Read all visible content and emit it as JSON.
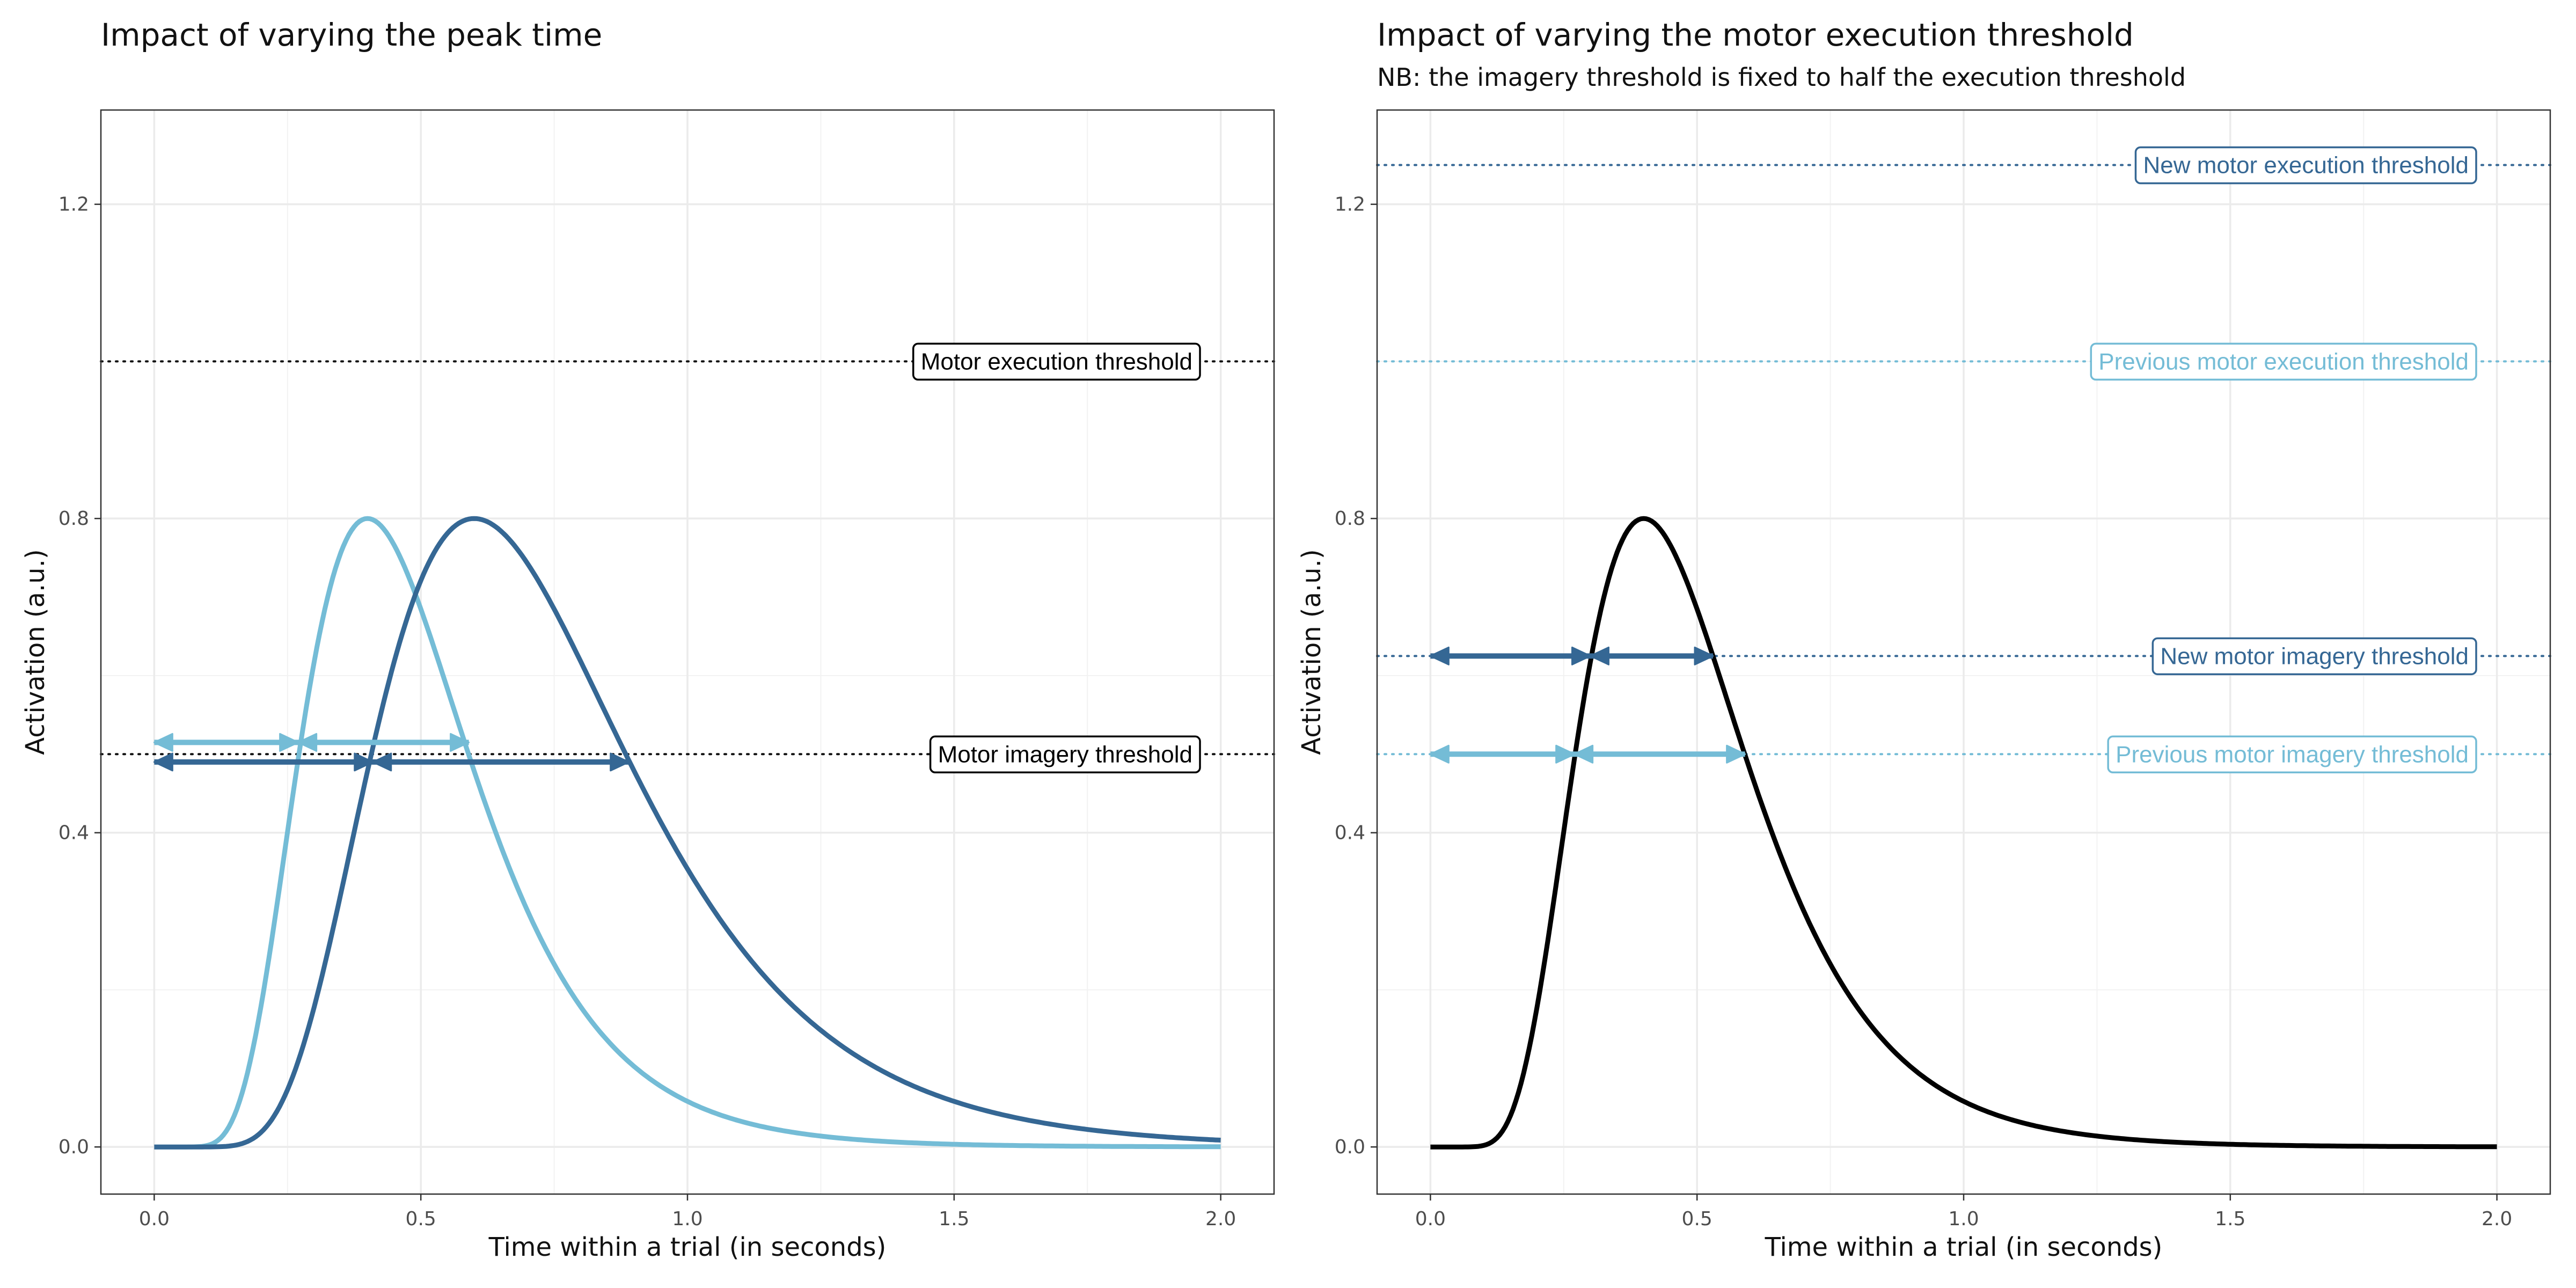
{
  "chart_data": [
    {
      "type": "line",
      "title": "Impact of varying the peak time",
      "subtitle": "",
      "xlabel": "Time within a trial (in seconds)",
      "ylabel": "Activation (a.u.)",
      "xlim": [
        -0.1,
        2.1
      ],
      "ylim": [
        -0.06,
        1.32
      ],
      "x_ticks": [
        "0.0",
        "0.5",
        "1.0",
        "1.5",
        "2.0"
      ],
      "x_tick_values": [
        0,
        0.5,
        1,
        1.5,
        2
      ],
      "y_ticks": [
        "0.0",
        "0.4",
        "0.8",
        "1.2"
      ],
      "y_tick_values": [
        0,
        0.4,
        0.8,
        1.2
      ],
      "grid": true,
      "curves": [
        {
          "color": "#74bcd6",
          "peak_time": 0.4,
          "peak_value": 0.8,
          "curvature": 0.4
        },
        {
          "color": "#356794",
          "peak_time": 0.6,
          "peak_value": 0.8,
          "curvature": 0.4
        }
      ],
      "thresholds": [
        {
          "label": "Motor execution threshold",
          "value": 1.0,
          "color": "#111111",
          "label_color": "#000000"
        },
        {
          "label": "Motor imagery threshold",
          "value": 0.5,
          "color": "#111111",
          "label_color": "#000000"
        }
      ],
      "intervals": [
        {
          "color": "#74bcd6",
          "y": 0.515,
          "x": [
            0.0,
            0.27,
            0.59
          ]
        },
        {
          "color": "#356794",
          "y": 0.49,
          "x": [
            0.0,
            0.41,
            0.89
          ]
        }
      ]
    },
    {
      "type": "line",
      "title": "Impact of varying the motor execution threshold",
      "subtitle": "NB: the imagery threshold is fixed to half the execution threshold",
      "xlabel": "Time within a trial (in seconds)",
      "ylabel": "Activation (a.u.)",
      "xlim": [
        -0.1,
        2.1
      ],
      "ylim": [
        -0.06,
        1.32
      ],
      "x_ticks": [
        "0.0",
        "0.5",
        "1.0",
        "1.5",
        "2.0"
      ],
      "x_tick_values": [
        0,
        0.5,
        1,
        1.5,
        2
      ],
      "y_ticks": [
        "0.0",
        "0.4",
        "0.8",
        "1.2"
      ],
      "y_tick_values": [
        0,
        0.4,
        0.8,
        1.2
      ],
      "grid": true,
      "curves": [
        {
          "color": "#000000",
          "peak_time": 0.4,
          "peak_value": 0.8,
          "curvature": 0.4
        }
      ],
      "thresholds": [
        {
          "label": "New motor execution threshold",
          "value": 1.25,
          "color": "#356794",
          "label_color": "#356794"
        },
        {
          "label": "Previous motor execution threshold",
          "value": 1.0,
          "color": "#74bcd6",
          "label_color": "#74bcd6"
        },
        {
          "label": "New motor imagery threshold",
          "value": 0.625,
          "color": "#356794",
          "label_color": "#356794"
        },
        {
          "label": "Previous motor imagery threshold",
          "value": 0.5,
          "color": "#74bcd6",
          "label_color": "#74bcd6"
        }
      ],
      "intervals": [
        {
          "color": "#356794",
          "y": 0.625,
          "x": [
            0.0,
            0.3,
            0.53
          ]
        },
        {
          "color": "#74bcd6",
          "y": 0.5,
          "x": [
            0.0,
            0.27,
            0.59
          ]
        }
      ]
    }
  ]
}
